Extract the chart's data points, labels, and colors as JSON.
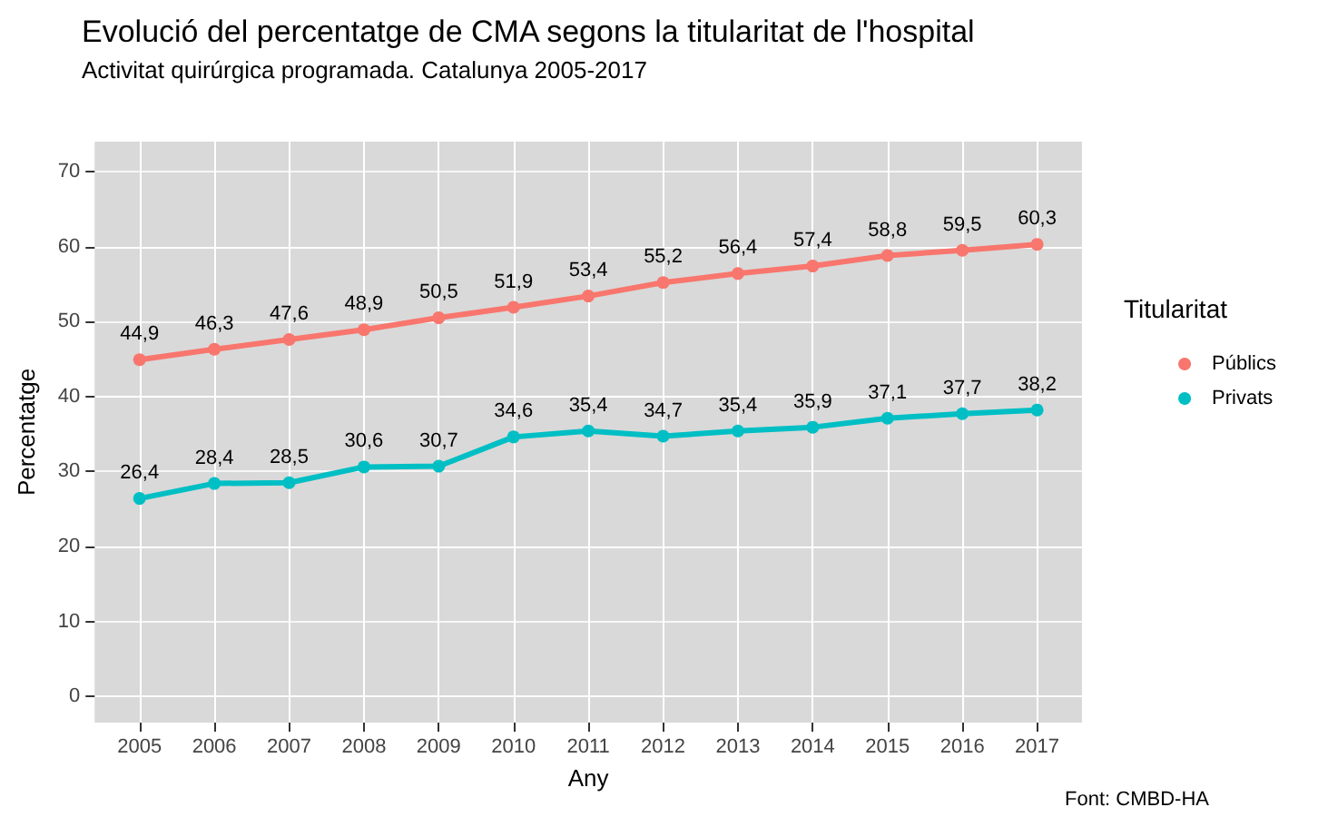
{
  "chart_data": {
    "type": "line",
    "title": "Evolució del percentatge de CMA segons la titularitat de l'hospital",
    "subtitle": "Activitat quirúrgica programada. Catalunya 2005-2017",
    "xlabel": "Any",
    "ylabel": "Percentatge",
    "legend_title": "Titularitat",
    "annotations": [
      "Font: CMBD-HA"
    ],
    "x": [
      2005,
      2006,
      2007,
      2008,
      2009,
      2010,
      2011,
      2012,
      2013,
      2014,
      2015,
      2016,
      2017
    ],
    "series": [
      {
        "name": "Públics",
        "color": "#f8766d",
        "values": [
          44.9,
          46.3,
          47.6,
          48.9,
          50.5,
          51.9,
          53.4,
          55.2,
          56.4,
          57.4,
          58.8,
          59.5,
          60.3
        ],
        "value_labels": [
          "44,9",
          "46,3",
          "47,6",
          "48,9",
          "50,5",
          "51,9",
          "53,4",
          "55,2",
          "56,4",
          "57,4",
          "58,8",
          "59,5",
          "60,3"
        ]
      },
      {
        "name": "Privats",
        "color": "#00bfc4",
        "values": [
          26.4,
          28.4,
          28.5,
          30.6,
          30.7,
          34.6,
          35.4,
          34.7,
          35.4,
          35.9,
          37.1,
          37.7,
          38.2
        ],
        "value_labels": [
          "26,4",
          "28,4",
          "28,5",
          "30,6",
          "30,7",
          "34,6",
          "35,4",
          "34,7",
          "35,4",
          "35,9",
          "37,1",
          "37,7",
          "38,2"
        ]
      }
    ],
    "xlim": [
      2004.4,
      2017.6
    ],
    "xticks": [
      2005,
      2006,
      2007,
      2008,
      2009,
      2010,
      2011,
      2012,
      2013,
      2014,
      2015,
      2016,
      2017
    ],
    "ylim": [
      -3.5,
      74
    ],
    "yticks": [
      0,
      10,
      20,
      30,
      40,
      50,
      60,
      70
    ],
    "grid": true,
    "legend": "right",
    "marker": "circle",
    "line_style": "solid"
  }
}
